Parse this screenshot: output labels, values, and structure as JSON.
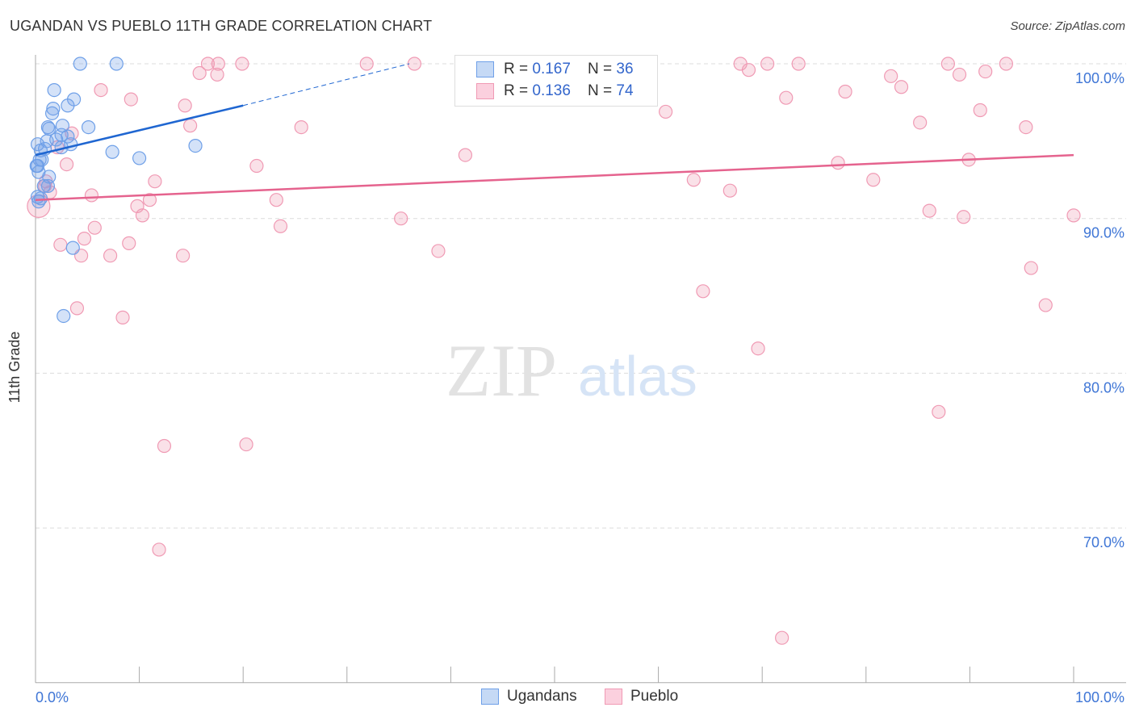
{
  "title": "UGANDAN VS PUEBLO 11TH GRADE CORRELATION CHART",
  "source": "Source: ZipAtlas.com",
  "watermark": {
    "zip": "ZIP",
    "atlas": "atlas"
  },
  "legend_box": [
    {
      "r_label": "R = ",
      "r": "0.167",
      "n_label": "N = ",
      "n": "36"
    },
    {
      "r_label": "R = ",
      "r": "0.136",
      "n_label": "N = ",
      "n": "74"
    }
  ],
  "chart_data": {
    "type": "scatter",
    "title": "UGANDAN VS PUEBLO 11TH GRADE CORRELATION CHART",
    "xlabel": "",
    "ylabel": "11th Grade",
    "xlim": [
      0,
      100
    ],
    "ylim": [
      60,
      100.6
    ],
    "x_tick_labels": [
      "0.0%",
      "100.0%"
    ],
    "y_ticks": [
      100,
      90,
      80,
      70
    ],
    "y_tick_labels": [
      "100.0%",
      "90.0%",
      "80.0%",
      "70.0%"
    ],
    "grid": true,
    "legend_position": "bottom",
    "series": [
      {
        "name": "Ugandans",
        "color": "#6fa0e8",
        "line_color": "#1f66d1",
        "trend": {
          "x0": 0,
          "y0": 94.1,
          "x1": 20,
          "y1": 97.3,
          "dash_to_x": 36,
          "dash_to_y": 100
        },
        "points": [
          [
            4.3,
            100
          ],
          [
            7.8,
            100
          ],
          [
            1.8,
            98.3
          ],
          [
            3.7,
            97.7
          ],
          [
            3.1,
            97.3
          ],
          [
            1.7,
            97.1
          ],
          [
            1.6,
            96.8
          ],
          [
            2.6,
            96.0
          ],
          [
            1.2,
            95.9
          ],
          [
            1.3,
            95.8
          ],
          [
            5.1,
            95.9
          ],
          [
            2.5,
            95.4
          ],
          [
            3.1,
            95.3
          ],
          [
            1.1,
            95.0
          ],
          [
            2.0,
            95.1
          ],
          [
            0.2,
            94.8
          ],
          [
            0.9,
            94.5
          ],
          [
            0.5,
            94.4
          ],
          [
            3.4,
            94.8
          ],
          [
            2.5,
            94.6
          ],
          [
            7.4,
            94.3
          ],
          [
            10.0,
            93.9
          ],
          [
            15.4,
            94.7
          ],
          [
            0.4,
            93.8
          ],
          [
            0.6,
            93.8
          ],
          [
            0.1,
            93.4
          ],
          [
            1.3,
            92.7
          ],
          [
            0.2,
            93.4
          ],
          [
            0.8,
            92.1
          ],
          [
            1.2,
            92.1
          ],
          [
            0.2,
            91.4
          ],
          [
            0.3,
            91.1
          ],
          [
            3.6,
            88.1
          ],
          [
            2.7,
            83.7
          ],
          [
            0.3,
            93.0
          ],
          [
            0.5,
            91.3
          ]
        ]
      },
      {
        "name": "Pueblo",
        "color": "#f09ab4",
        "line_color": "#e5638e",
        "trend": {
          "x0": 0,
          "y0": 91.2,
          "x1": 100,
          "y1": 94.1
        },
        "points": [
          [
            0.3,
            90.8
          ],
          [
            6.3,
            98.3
          ],
          [
            9.2,
            97.7
          ],
          [
            14.4,
            97.3
          ],
          [
            14.9,
            96.0
          ],
          [
            16.6,
            100
          ],
          [
            17.6,
            100
          ],
          [
            19.9,
            100
          ],
          [
            15.8,
            99.4
          ],
          [
            17.5,
            99.3
          ],
          [
            31.9,
            100
          ],
          [
            36.5,
            100
          ],
          [
            42.2,
            100
          ],
          [
            47.0,
            100
          ],
          [
            67.9,
            100
          ],
          [
            70.5,
            100
          ],
          [
            73.5,
            100
          ],
          [
            68.7,
            99.6
          ],
          [
            87.9,
            100
          ],
          [
            93.5,
            100
          ],
          [
            89.0,
            99.3
          ],
          [
            91.5,
            99.5
          ],
          [
            82.4,
            99.2
          ],
          [
            83.4,
            98.5
          ],
          [
            78.0,
            98.2
          ],
          [
            72.3,
            97.8
          ],
          [
            60.7,
            96.9
          ],
          [
            91.0,
            97.0
          ],
          [
            85.2,
            96.2
          ],
          [
            95.4,
            95.9
          ],
          [
            25.6,
            95.9
          ],
          [
            3.5,
            95.5
          ],
          [
            2.1,
            94.6
          ],
          [
            41.4,
            94.1
          ],
          [
            3.0,
            93.5
          ],
          [
            21.3,
            93.4
          ],
          [
            89.9,
            93.8
          ],
          [
            77.3,
            93.6
          ],
          [
            11.5,
            92.4
          ],
          [
            63.4,
            92.5
          ],
          [
            80.7,
            92.5
          ],
          [
            0.9,
            92.1
          ],
          [
            1.4,
            91.7
          ],
          [
            5.4,
            91.5
          ],
          [
            11.0,
            91.2
          ],
          [
            23.2,
            91.2
          ],
          [
            66.9,
            91.8
          ],
          [
            9.8,
            90.8
          ],
          [
            10.3,
            90.2
          ],
          [
            35.2,
            90.0
          ],
          [
            86.1,
            90.5
          ],
          [
            89.4,
            90.1
          ],
          [
            100.0,
            90.2
          ],
          [
            23.6,
            89.5
          ],
          [
            5.7,
            89.4
          ],
          [
            4.7,
            88.7
          ],
          [
            2.4,
            88.3
          ],
          [
            9.0,
            88.4
          ],
          [
            4.4,
            87.6
          ],
          [
            7.2,
            87.6
          ],
          [
            14.2,
            87.6
          ],
          [
            38.8,
            87.9
          ],
          [
            95.9,
            86.8
          ],
          [
            64.3,
            85.3
          ],
          [
            4.0,
            84.2
          ],
          [
            8.4,
            83.6
          ],
          [
            97.3,
            84.4
          ],
          [
            69.6,
            81.6
          ],
          [
            87.0,
            77.5
          ],
          [
            12.4,
            75.3
          ],
          [
            20.3,
            75.4
          ],
          [
            11.9,
            68.6
          ],
          [
            71.9,
            62.9
          ],
          [
            1.0,
            92.4
          ]
        ]
      }
    ]
  }
}
